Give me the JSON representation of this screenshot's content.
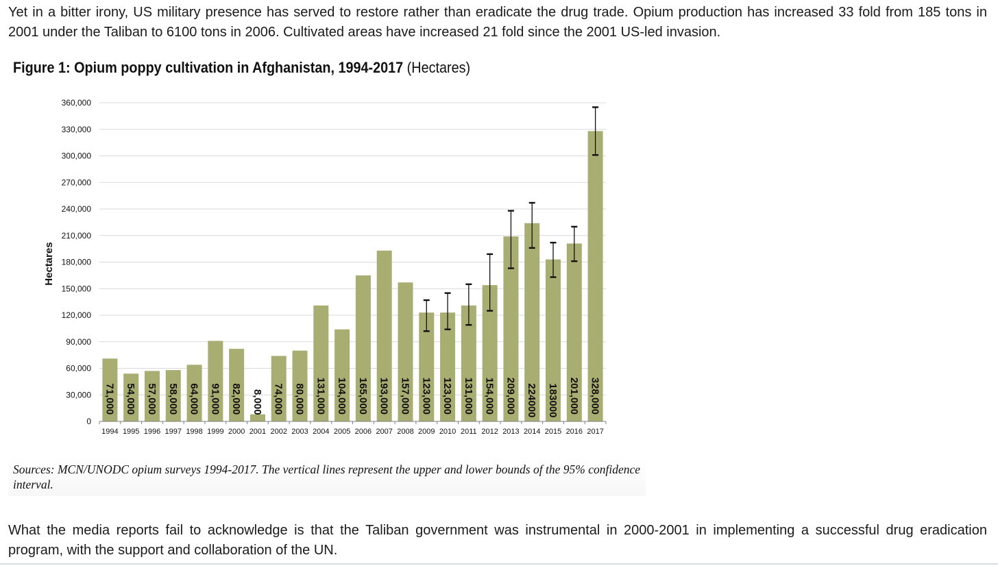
{
  "intro_text": "Yet in a bitter irony, US military presence has served to restore rather than eradicate the drug trade. Opium production has increased 33 fold from 185 tons in 2001 under the Taliban to 6100 tons in 2006. Cultivated areas have increased 21 fold since the 2001 US-led invasion.",
  "figure": {
    "title_bold": "Figure 1: Opium poppy cultivation in Afghanistan, 1994-2017",
    "title_unit": "(Hectares)"
  },
  "sources_text": "Sources: MCN/UNODC opium surveys 1994-2017. The vertical lines represent the upper and lower bounds of the 95% confidence interval.",
  "closing_text": "What the media reports fail to acknowledge is that the Taliban government was instrumental in 2000-2001 in implementing a successful drug eradication program, with the support and collaboration of the UN.",
  "chart_data": {
    "type": "bar",
    "ylabel": "Hectares",
    "ylim": [
      0,
      360000
    ],
    "yticks": [
      0,
      30000,
      60000,
      90000,
      120000,
      150000,
      180000,
      210000,
      240000,
      270000,
      300000,
      330000,
      360000
    ],
    "ytick_labels": [
      "0",
      "30,000",
      "60,000",
      "90,000",
      "120,000",
      "150,000",
      "180,000",
      "210,000",
      "240,000",
      "270,000",
      "300,000",
      "330,000",
      "360,000"
    ],
    "grid": "horizontal",
    "bar_color": "#a8ad72",
    "categories": [
      "1994",
      "1995",
      "1996",
      "1997",
      "1998",
      "1999",
      "2000",
      "2001",
      "2002",
      "2003",
      "2004",
      "2005",
      "2006",
      "2007",
      "2008",
      "2009",
      "2010",
      "2011",
      "2012",
      "2013",
      "2014",
      "2015",
      "2016",
      "2017"
    ],
    "values": [
      71000,
      54000,
      57000,
      58000,
      64000,
      91000,
      82000,
      8000,
      74000,
      80000,
      131000,
      104000,
      165000,
      193000,
      157000,
      123000,
      123000,
      131000,
      154000,
      209000,
      224000,
      183000,
      201000,
      328000
    ],
    "data_labels": [
      "71,000",
      "54,000",
      "57,000",
      "58,000",
      "64,000",
      "91,000",
      "82,000",
      "8,000",
      "74,000",
      "80,000",
      "131,000",
      "104,000",
      "165,000",
      "193,000",
      "157,000",
      "123,000",
      "123,000",
      "131,000",
      "154,000",
      "209,000",
      "224000",
      "183000",
      "201,000",
      "328,000"
    ],
    "error_bars": [
      null,
      null,
      null,
      null,
      null,
      null,
      null,
      null,
      null,
      null,
      null,
      null,
      null,
      null,
      null,
      [
        102000,
        137000
      ],
      [
        104000,
        145000
      ],
      [
        109000,
        155000
      ],
      [
        125000,
        189000
      ],
      [
        173000,
        238000
      ],
      [
        196000,
        247000
      ],
      [
        163000,
        202000
      ],
      [
        181000,
        220000
      ],
      [
        301000,
        355000
      ]
    ]
  }
}
